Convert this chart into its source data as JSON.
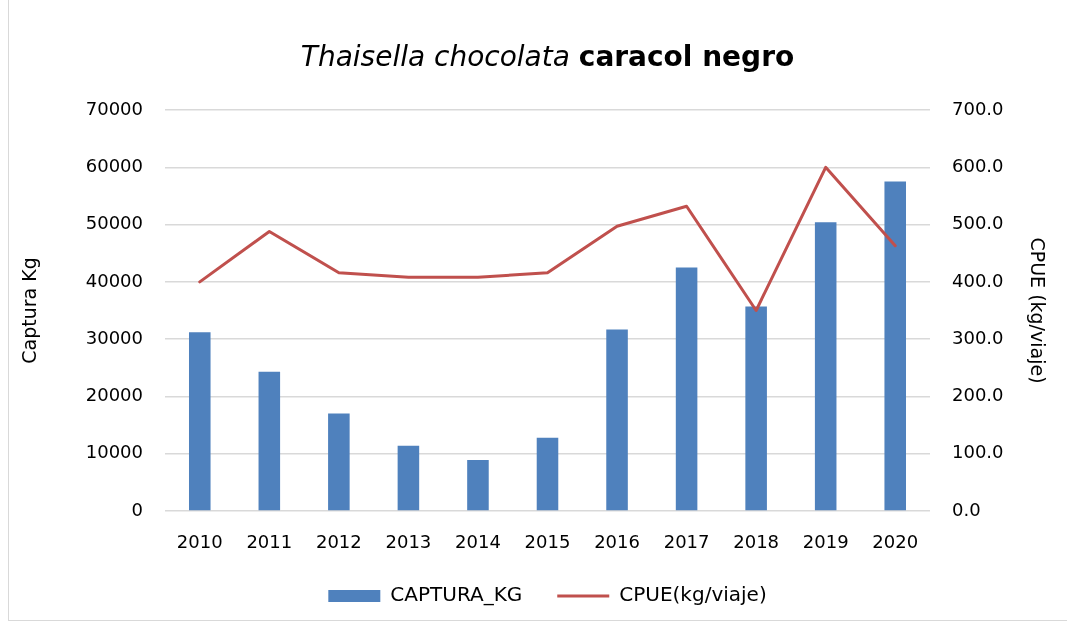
{
  "chart_data": {
    "type": "bar",
    "title": "Thaisella chocolata caracol negro",
    "ylabel": "Captura Kg",
    "y2label": "CPUE (kg/viaje)",
    "categories": [
      "2010",
      "2011",
      "2012",
      "2013",
      "2014",
      "2015",
      "2016",
      "2017",
      "2018",
      "2019",
      "2020"
    ],
    "series": [
      {
        "name": "CAPTURA_KG",
        "color": "#4f81bd",
        "values": [
          31200,
          24300,
          17000,
          11400,
          8900,
          12800,
          31700,
          42500,
          35700,
          50400,
          57500
        ]
      },
      {
        "name": "CPUE(kg/viaje)",
        "type": "line",
        "axis": "y2",
        "color": "#c0504d",
        "values": [
          400,
          488,
          416,
          408,
          408,
          416,
          497,
          532,
          350,
          600,
          463
        ]
      }
    ],
    "ylim": [
      0,
      70000
    ],
    "yticks": [
      0,
      10000,
      20000,
      30000,
      40000,
      50000,
      60000,
      70000
    ],
    "y2lim": [
      0,
      700
    ],
    "y2ticks": [
      {
        "value": 0,
        "label": "0.0"
      },
      {
        "value": 100,
        "label": "100.0"
      },
      {
        "value": 200,
        "label": "200.0"
      },
      {
        "value": 300,
        "label": "300.0"
      },
      {
        "value": 400,
        "label": "400.0"
      },
      {
        "value": 500,
        "label": "500.0"
      },
      {
        "value": 600,
        "label": "600.0"
      },
      {
        "value": 700,
        "label": "700.0"
      }
    ],
    "grid": "y",
    "legend": "bottom",
    "marker": "none",
    "line_style": "solid"
  }
}
